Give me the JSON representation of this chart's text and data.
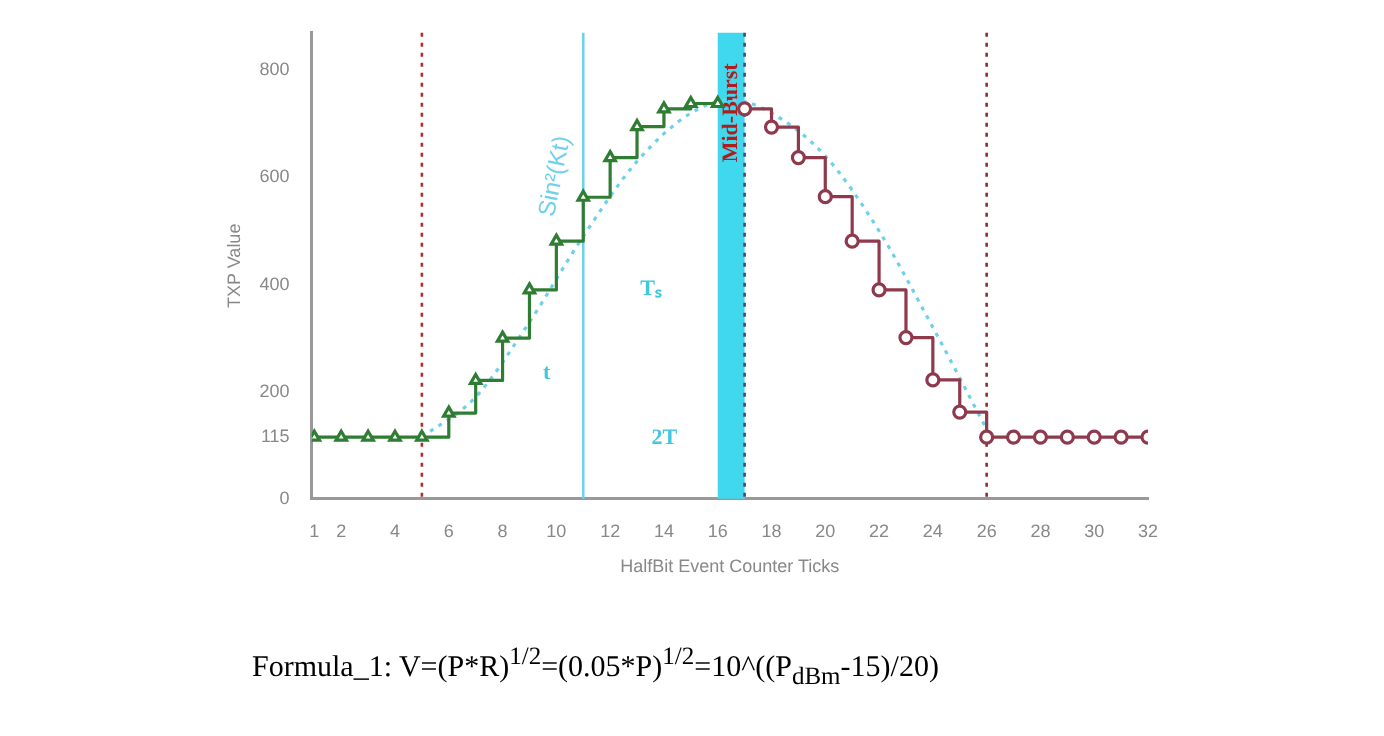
{
  "chart_data": {
    "type": "step",
    "xlabel": "HalfBit Event Counter Ticks",
    "ylabel": "TXP Value",
    "xlim": [
      0.9,
      32
    ],
    "xticks": [
      1,
      2,
      4,
      6,
      8,
      10,
      12,
      14,
      16,
      18,
      20,
      22,
      24,
      26,
      28,
      30,
      32
    ],
    "ylim": [
      0,
      870
    ],
    "yticks": [
      0,
      115,
      200,
      400,
      600,
      800
    ],
    "grid": false,
    "legend": false,
    "series": [
      {
        "color": "#2f7d32",
        "marker": "triangle",
        "x": [
          1,
          2,
          3,
          4,
          5,
          6,
          7,
          8,
          9,
          10,
          11,
          12,
          13,
          14,
          15,
          16
        ],
        "values": [
          115,
          115,
          115,
          115,
          115,
          160,
          221,
          300,
          390,
          481,
          563,
          637,
          695,
          728,
          738,
          738
        ]
      },
      {
        "color": "#8e3a4c",
        "marker": "circle",
        "x": [
          17,
          18,
          19,
          20,
          21,
          22,
          23,
          24,
          25,
          26,
          27,
          28,
          29,
          30,
          31,
          32
        ],
        "values": [
          728,
          694,
          637,
          564,
          481,
          390,
          301,
          222,
          162,
          115,
          115,
          115,
          115,
          115,
          115,
          115
        ]
      },
      {
        "type": "line",
        "name": "Sin²(Kt)",
        "color": "#6fd0ea",
        "marker": "none",
        "line_style": "dotted",
        "x": [
          5,
          7,
          9,
          11,
          13,
          15,
          16.5,
          18,
          20,
          22,
          24,
          26
        ],
        "values": [
          115,
          190,
          330,
          490,
          630,
          720,
          745,
          720,
          640,
          500,
          320,
          130
        ]
      }
    ],
    "bands": [
      {
        "axis": "x",
        "from": 16,
        "to": 17,
        "label": "Mid-Burst",
        "color": "#3fd8ee"
      }
    ],
    "ref_lines": [
      {
        "axis": "x",
        "value": 5,
        "color": "#b03030",
        "line_style": "dotted"
      },
      {
        "axis": "x",
        "value": 17,
        "color": "#4a4a6a",
        "line_style": "dotted"
      },
      {
        "axis": "x",
        "value": 26,
        "color": "#8b3030",
        "line_style": "dotted"
      },
      {
        "axis": "x",
        "value": 11,
        "color": "#6fd0ea",
        "line_style": "solid"
      }
    ],
    "annotations": [
      "t",
      "Tₛ",
      "2T",
      "Formula_1: V=(P*R)$^{1/2}$=(0.05*P)$^{1/2}$=10^((P$_{dBm}$-15)/20)"
    ]
  }
}
